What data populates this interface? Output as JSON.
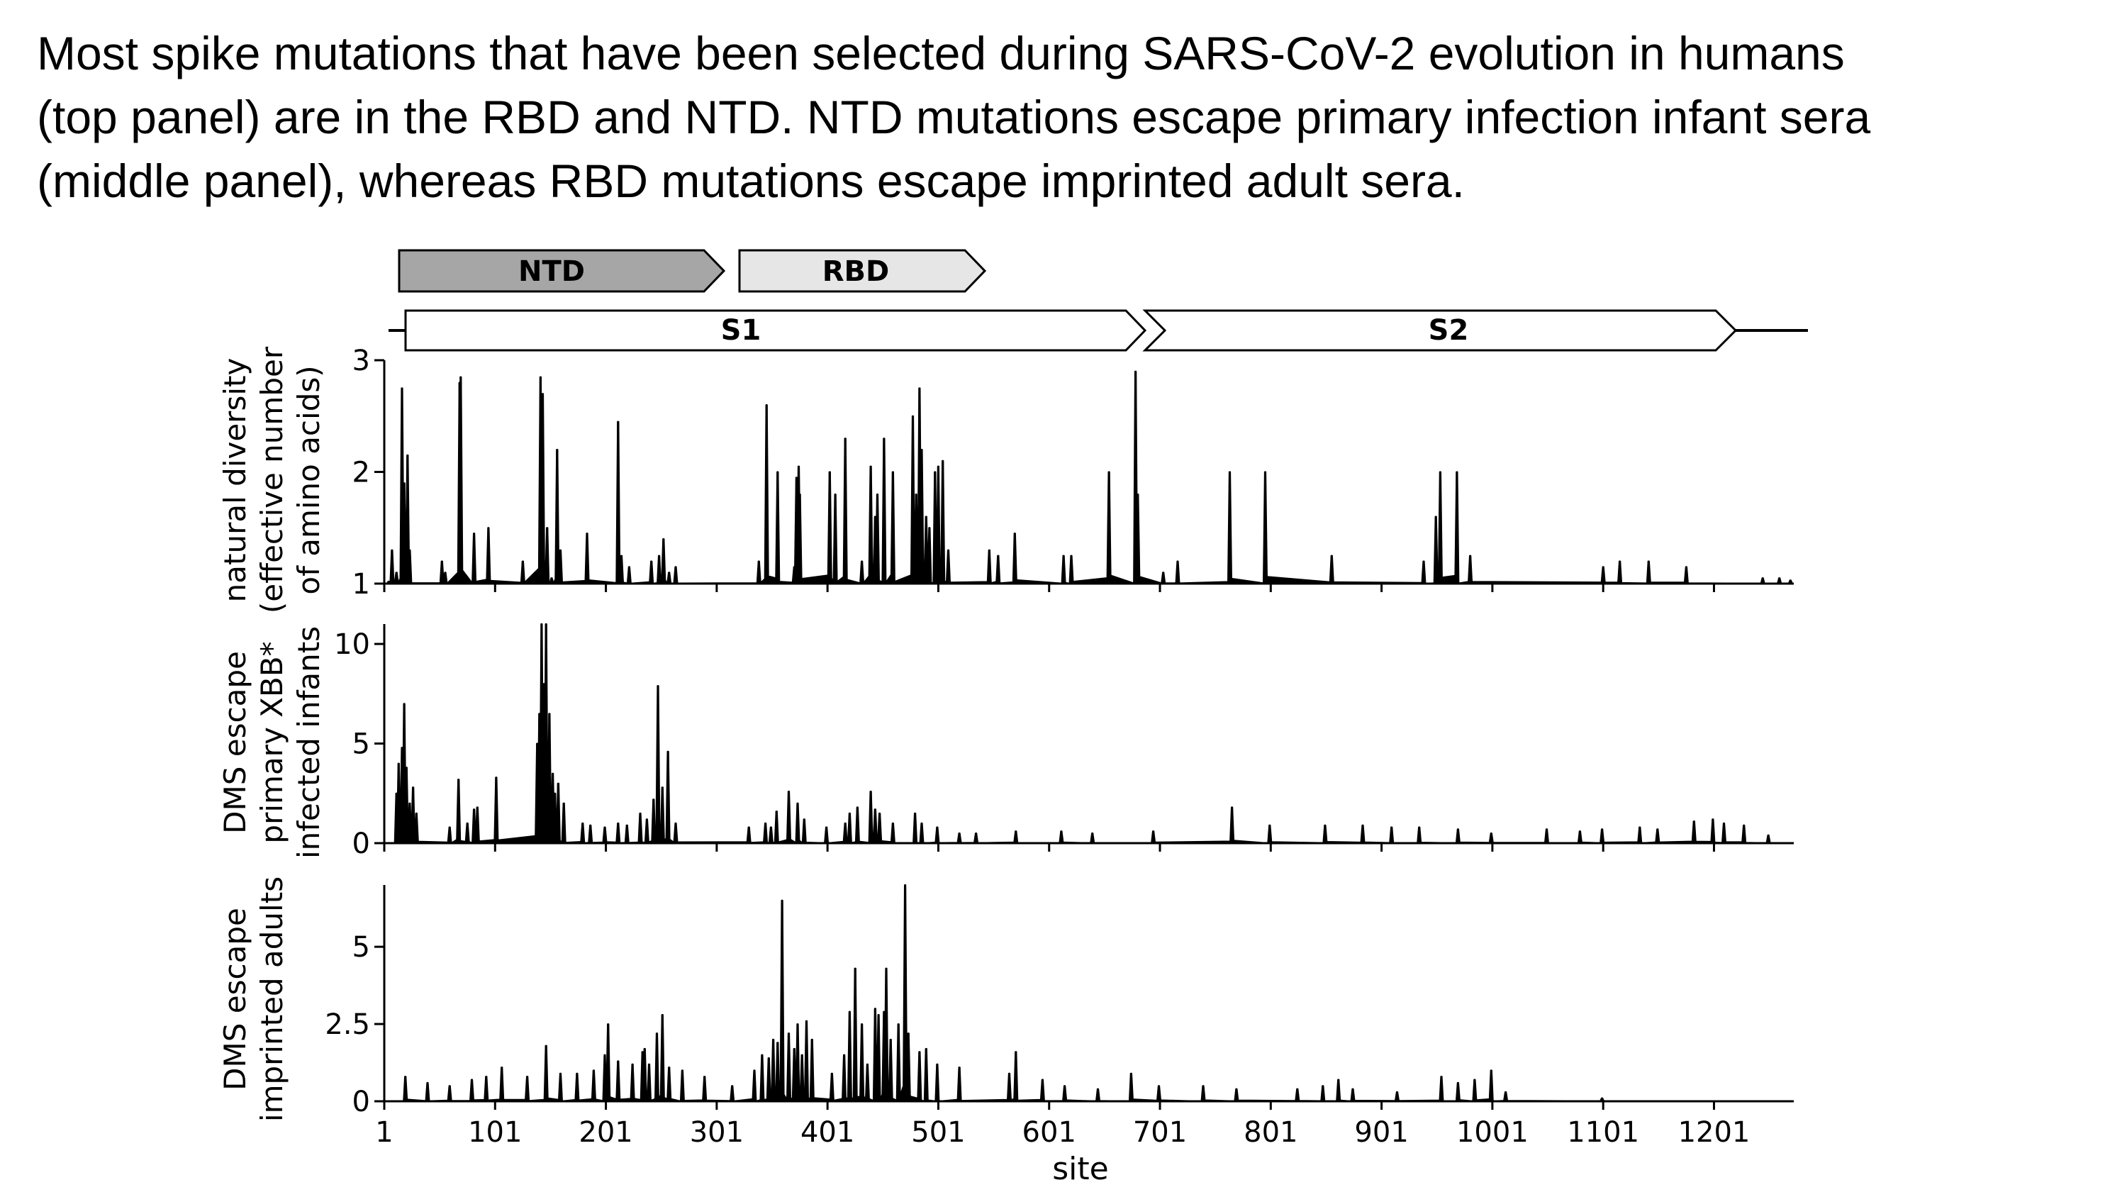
{
  "caption_lines": [
    "Most spike mutations that have been selected during SARS-CoV-2 evolution in humans",
    "(top panel) are in the RBD and NTD. NTD mutations escape primary infection infant sera",
    "(middle panel), whereas RBD mutations escape imprinted adult sera."
  ],
  "domains": {
    "top_row": [
      "NTD",
      "RBD"
    ],
    "bottom_row": [
      "S1",
      "S2"
    ]
  },
  "colors": {
    "ntd": "#a6a6a6",
    "rbd": "#e6e6e6",
    "trace": "#000000"
  },
  "chart_data": [
    {
      "type": "area",
      "ylabel": [
        "natural diversity",
        "(effective number",
        "of amino acids)"
      ],
      "ylim": [
        1,
        3
      ],
      "yticks": [
        "1",
        "2",
        "3"
      ],
      "ytick_values": [
        1,
        2,
        3
      ],
      "baseline": 1,
      "peaks": [
        [
          5,
          1.02
        ],
        [
          8,
          1.3
        ],
        [
          12,
          1.1
        ],
        [
          17,
          2.75
        ],
        [
          19,
          1.9
        ],
        [
          22,
          2.15
        ],
        [
          24,
          1.3
        ],
        [
          53,
          1.2
        ],
        [
          56,
          1.1
        ],
        [
          69,
          2.8
        ],
        [
          70,
          2.85
        ],
        [
          82,
          1.45
        ],
        [
          95,
          1.5
        ],
        [
          126,
          1.2
        ],
        [
          142,
          2.85
        ],
        [
          144,
          2.7
        ],
        [
          148,
          1.5
        ],
        [
          152,
          1.05
        ],
        [
          157,
          2.2
        ],
        [
          160,
          1.3
        ],
        [
          184,
          1.45
        ],
        [
          212,
          2.45
        ],
        [
          215,
          1.25
        ],
        [
          222,
          1.15
        ],
        [
          242,
          1.2
        ],
        [
          249,
          1.25
        ],
        [
          253,
          1.4
        ],
        [
          258,
          1.1
        ],
        [
          264,
          1.15
        ],
        [
          339,
          1.2
        ],
        [
          346,
          2.6
        ],
        [
          356,
          2.0
        ],
        [
          371,
          1.15
        ],
        [
          373,
          1.95
        ],
        [
          375,
          2.05
        ],
        [
          376,
          1.8
        ],
        [
          403,
          2.0
        ],
        [
          408,
          1.8
        ],
        [
          417,
          2.3
        ],
        [
          432,
          1.2
        ],
        [
          440,
          2.05
        ],
        [
          444,
          1.6
        ],
        [
          446,
          1.8
        ],
        [
          452,
          2.3
        ],
        [
          460,
          2.0
        ],
        [
          478,
          2.5
        ],
        [
          481,
          1.8
        ],
        [
          484,
          2.75
        ],
        [
          486,
          2.2
        ],
        [
          490,
          1.6
        ],
        [
          493,
          1.5
        ],
        [
          498,
          2.0
        ],
        [
          501,
          2.05
        ],
        [
          505,
          2.1
        ],
        [
          510,
          1.3
        ],
        [
          547,
          1.3
        ],
        [
          555,
          1.25
        ],
        [
          570,
          1.45
        ],
        [
          614,
          1.25
        ],
        [
          621,
          1.25
        ],
        [
          655,
          2.0
        ],
        [
          679,
          2.9
        ],
        [
          681,
          1.8
        ],
        [
          704,
          1.1
        ],
        [
          717,
          1.2
        ],
        [
          764,
          2.0
        ],
        [
          796,
          2.0
        ],
        [
          856,
          1.25
        ],
        [
          939,
          1.2
        ],
        [
          950,
          1.6
        ],
        [
          954,
          2.0
        ],
        [
          969,
          2.0
        ],
        [
          981,
          1.25
        ],
        [
          1101,
          1.15
        ],
        [
          1116,
          1.2
        ],
        [
          1142,
          1.2
        ],
        [
          1176,
          1.15
        ],
        [
          1245,
          1.05
        ],
        [
          1260,
          1.05
        ],
        [
          1270,
          1.03
        ]
      ]
    },
    {
      "type": "area",
      "ylabel": [
        "DMS escape",
        "primary XBB*",
        "infected infants"
      ],
      "ylim": [
        0,
        11
      ],
      "yticks": [
        "0",
        "5",
        "10"
      ],
      "ytick_values": [
        0,
        5,
        10
      ],
      "baseline": 0,
      "peaks": [
        [
          12,
          2.5
        ],
        [
          14,
          4
        ],
        [
          17,
          4.8
        ],
        [
          19,
          7
        ],
        [
          21,
          3.8
        ],
        [
          24,
          2
        ],
        [
          27,
          2.8
        ],
        [
          30,
          1.5
        ],
        [
          60,
          0.8
        ],
        [
          68,
          3.2
        ],
        [
          76,
          1.0
        ],
        [
          82,
          1.7
        ],
        [
          85,
          1.8
        ],
        [
          102,
          3.3
        ],
        [
          139,
          5
        ],
        [
          141,
          6.5
        ],
        [
          143,
          11
        ],
        [
          145,
          8
        ],
        [
          147,
          11
        ],
        [
          150,
          6.5
        ],
        [
          153,
          3.5
        ],
        [
          155,
          2.5
        ],
        [
          158,
          3
        ],
        [
          163,
          2
        ],
        [
          180,
          1.0
        ],
        [
          187,
          0.9
        ],
        [
          200,
          0.8
        ],
        [
          212,
          1.0
        ],
        [
          220,
          0.9
        ],
        [
          232,
          1.5
        ],
        [
          238,
          1.2
        ],
        [
          244,
          2.2
        ],
        [
          248,
          7.9
        ],
        [
          252,
          2.8
        ],
        [
          257,
          4.6
        ],
        [
          264,
          1.0
        ],
        [
          330,
          0.8
        ],
        [
          345,
          1.0
        ],
        [
          350,
          0.8
        ],
        [
          355,
          1.6
        ],
        [
          366,
          2.6
        ],
        [
          374,
          2.0
        ],
        [
          380,
          1.2
        ],
        [
          400,
          0.8
        ],
        [
          417,
          1.0
        ],
        [
          421,
          1.5
        ],
        [
          428,
          1.8
        ],
        [
          440,
          2.6
        ],
        [
          444,
          1.7
        ],
        [
          448,
          1.5
        ],
        [
          460,
          1.0
        ],
        [
          480,
          1.5
        ],
        [
          486,
          1.0
        ],
        [
          500,
          0.8
        ],
        [
          520,
          0.5
        ],
        [
          535,
          0.5
        ],
        [
          571,
          0.6
        ],
        [
          612,
          0.6
        ],
        [
          640,
          0.5
        ],
        [
          695,
          0.6
        ],
        [
          766,
          1.8
        ],
        [
          800,
          0.9
        ],
        [
          850,
          0.9
        ],
        [
          884,
          0.9
        ],
        [
          910,
          0.8
        ],
        [
          935,
          0.8
        ],
        [
          970,
          0.7
        ],
        [
          1000,
          0.5
        ],
        [
          1050,
          0.7
        ],
        [
          1080,
          0.6
        ],
        [
          1100,
          0.7
        ],
        [
          1134,
          0.8
        ],
        [
          1150,
          0.7
        ],
        [
          1183,
          1.1
        ],
        [
          1200,
          1.2
        ],
        [
          1210,
          1.0
        ],
        [
          1228,
          0.9
        ],
        [
          1250,
          0.4
        ]
      ]
    },
    {
      "type": "area",
      "ylabel": [
        "DMS escape",
        "imprinted adults"
      ],
      "ylim": [
        0,
        7
      ],
      "yticks": [
        "0",
        "2.5",
        "5"
      ],
      "ytick_values": [
        0,
        2.5,
        5
      ],
      "baseline": 0,
      "peaks": [
        [
          20,
          0.8
        ],
        [
          40,
          0.6
        ],
        [
          60,
          0.5
        ],
        [
          80,
          0.7
        ],
        [
          93,
          0.8
        ],
        [
          107,
          1.1
        ],
        [
          130,
          0.8
        ],
        [
          147,
          1.8
        ],
        [
          160,
          0.9
        ],
        [
          175,
          0.9
        ],
        [
          190,
          1.0
        ],
        [
          200,
          1.5
        ],
        [
          203,
          2.5
        ],
        [
          212,
          1.3
        ],
        [
          225,
          1.2
        ],
        [
          234,
          1.6
        ],
        [
          236,
          1.7
        ],
        [
          240,
          1.2
        ],
        [
          247,
          2.2
        ],
        [
          252,
          2.8
        ],
        [
          258,
          1.1
        ],
        [
          270,
          1.0
        ],
        [
          290,
          0.8
        ],
        [
          315,
          0.5
        ],
        [
          335,
          1.0
        ],
        [
          342,
          1.5
        ],
        [
          348,
          1.4
        ],
        [
          352,
          2.0
        ],
        [
          356,
          1.9
        ],
        [
          360,
          6.5
        ],
        [
          366,
          2.2
        ],
        [
          371,
          1.7
        ],
        [
          374,
          2.5
        ],
        [
          378,
          1.5
        ],
        [
          382,
          2.6
        ],
        [
          387,
          2.0
        ],
        [
          405,
          0.9
        ],
        [
          416,
          1.5
        ],
        [
          421,
          2.9
        ],
        [
          426,
          4.3
        ],
        [
          432,
          2.5
        ],
        [
          437,
          1.2
        ],
        [
          444,
          3.0
        ],
        [
          447,
          2.8
        ],
        [
          452,
          2.9
        ],
        [
          454,
          4.3
        ],
        [
          458,
          2.0
        ],
        [
          465,
          2.5
        ],
        [
          471,
          7.0
        ],
        [
          474,
          2.2
        ],
        [
          484,
          1.6
        ],
        [
          490,
          1.7
        ],
        [
          500,
          1.2
        ],
        [
          520,
          1.1
        ],
        [
          565,
          0.9
        ],
        [
          571,
          1.6
        ],
        [
          595,
          0.7
        ],
        [
          615,
          0.5
        ],
        [
          645,
          0.4
        ],
        [
          675,
          0.9
        ],
        [
          700,
          0.5
        ],
        [
          740,
          0.5
        ],
        [
          770,
          0.4
        ],
        [
          825,
          0.4
        ],
        [
          848,
          0.5
        ],
        [
          862,
          0.7
        ],
        [
          875,
          0.4
        ],
        [
          915,
          0.3
        ],
        [
          955,
          0.8
        ],
        [
          970,
          0.6
        ],
        [
          985,
          0.7
        ],
        [
          1000,
          1.0
        ],
        [
          1013,
          0.3
        ],
        [
          1100,
          0.1
        ]
      ]
    }
  ],
  "x_axis": {
    "ticks": [
      "1",
      "101",
      "201",
      "301",
      "401",
      "501",
      "601",
      "701",
      "801",
      "901",
      "1001",
      "1101",
      "1201"
    ],
    "tick_values": [
      1,
      101,
      201,
      301,
      401,
      501,
      601,
      701,
      801,
      901,
      1001,
      1101,
      1201
    ],
    "label": "site",
    "range": [
      1,
      1273
    ]
  }
}
